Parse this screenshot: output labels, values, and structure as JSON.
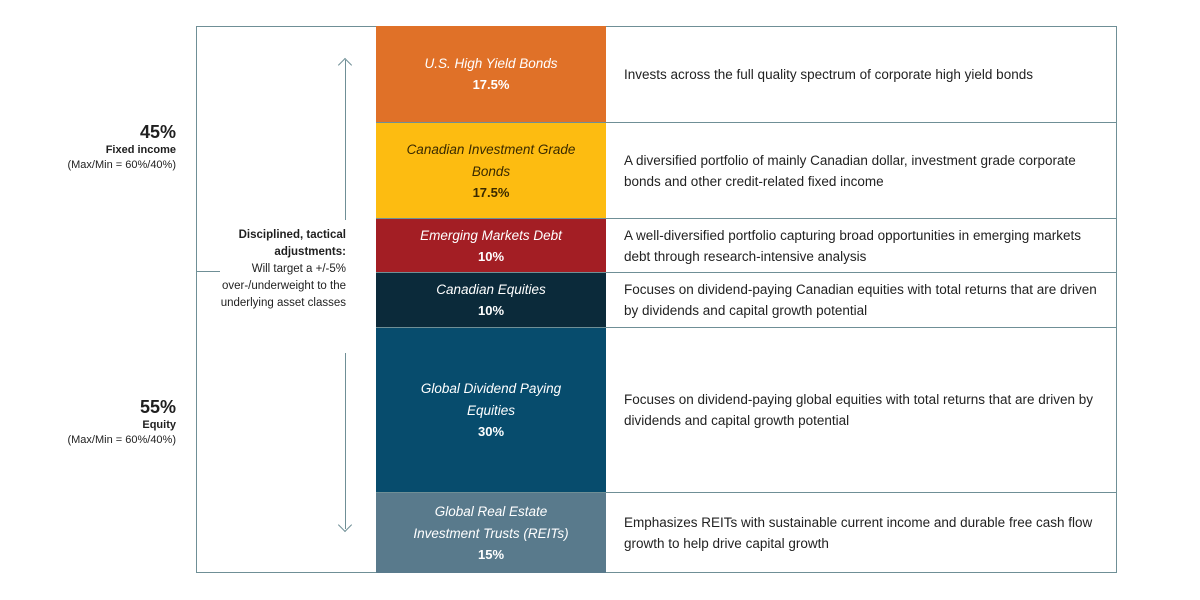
{
  "fixed_income": {
    "percent": "45%",
    "label": "Fixed income",
    "range": "(Max/Min = 60%/40%)"
  },
  "equity": {
    "percent": "55%",
    "label": "Equity",
    "range": "(Max/Min = 60%/40%)"
  },
  "note": {
    "lead": "Disciplined, tactical adjustments:",
    "body": "Will target a +/-5% over-/underweight to the underlying asset classes"
  },
  "allocations": [
    {
      "name": "U.S. High Yield Bonds",
      "value": "17.5%",
      "color": "#e07128",
      "description": "Invests across the full quality spectrum of corporate high yield bonds"
    },
    {
      "name": "Canadian Investment Grade Bonds",
      "value": "17.5%",
      "color": "#fdbc11",
      "description": "A diversified portfolio of mainly Canadian dollar, investment grade corporate bonds and other credit-related fixed income"
    },
    {
      "name": "Emerging Markets Debt",
      "value": "10%",
      "color": "#a31e24",
      "description": "A well-diversified portfolio capturing broad opportunities in emerging markets debt through research-intensive analysis"
    },
    {
      "name": "Canadian Equities",
      "value": "10%",
      "color": "#0b2a3a",
      "description": "Focuses on dividend-paying Canadian equities with total returns that are driven by dividends and capital growth potential"
    },
    {
      "name": "Global Dividend Paying Equities",
      "value": "30%",
      "color": "#074c6d",
      "description": "Focuses on dividend-paying global equities with total returns that are driven by dividends and capital growth potential"
    },
    {
      "name": "Global Real Estate Investment Trusts (REITs)",
      "value": "15%",
      "color": "#597a8c",
      "description": "Emphasizes REITs with sustainable current income and durable free cash flow growth to help drive capital growth"
    }
  ]
}
